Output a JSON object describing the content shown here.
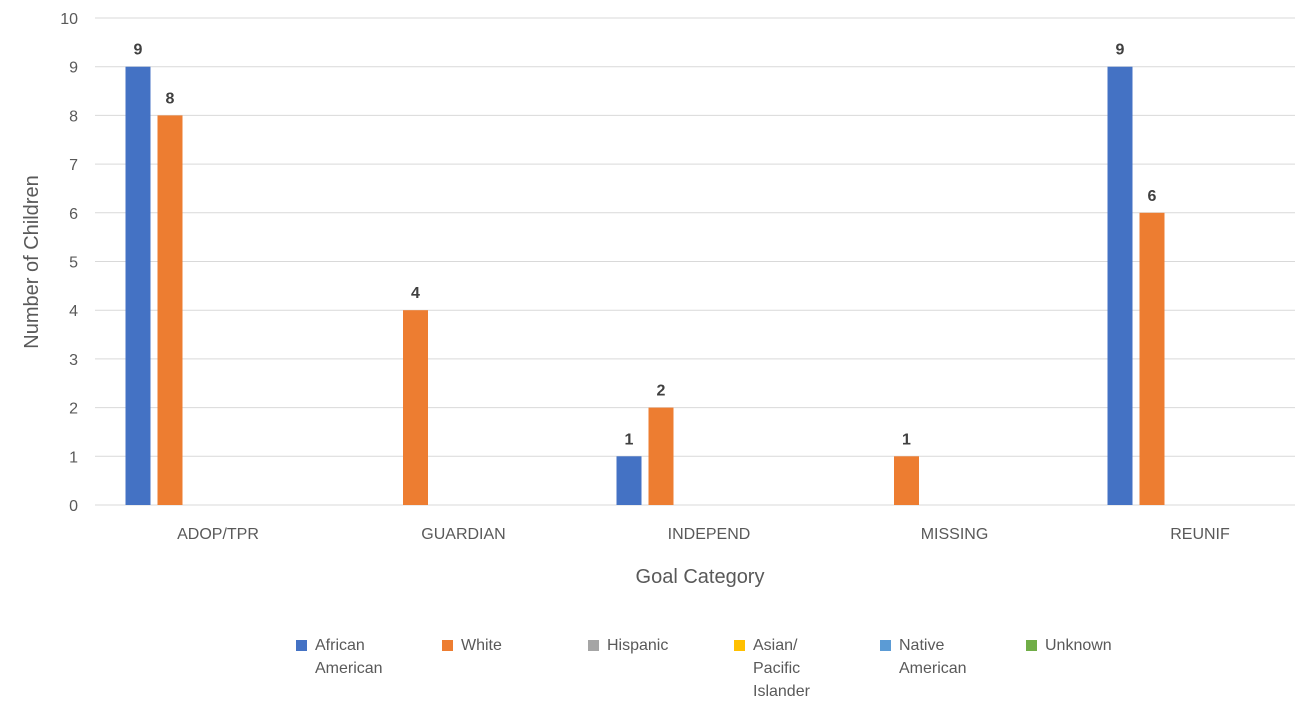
{
  "chart_data": {
    "type": "bar",
    "title": "",
    "xlabel": "Goal Category",
    "ylabel": "Number of Children",
    "ylim": [
      0,
      10
    ],
    "yticks": [
      0,
      1,
      2,
      3,
      4,
      5,
      6,
      7,
      8,
      9,
      10
    ],
    "grid": true,
    "legend_position": "bottom",
    "categories": [
      "ADOP/TPR",
      "GUARDIAN",
      "INDEPEND",
      "MISSING",
      "REUNIF"
    ],
    "series": [
      {
        "name": "African American",
        "color": "#4472C4",
        "values": [
          9,
          0,
          1,
          0,
          9
        ],
        "labels": [
          "9",
          "",
          "1",
          "",
          "9"
        ]
      },
      {
        "name": "White",
        "color": "#ED7D31",
        "values": [
          8,
          4,
          2,
          1,
          6
        ],
        "labels": [
          "8",
          "4",
          "2",
          "1",
          "6"
        ]
      },
      {
        "name": "Hispanic",
        "color": "#A5A5A5",
        "values": [
          0,
          0,
          0,
          0,
          0
        ],
        "labels": [
          "",
          "",
          "",
          "",
          ""
        ]
      },
      {
        "name": "Asian/ Pacific Islander",
        "color": "#FFC000",
        "values": [
          0,
          0,
          0,
          0,
          0
        ],
        "labels": [
          "",
          "",
          "",
          "",
          ""
        ]
      },
      {
        "name": "Native American",
        "color": "#5B9BD5",
        "values": [
          0,
          0,
          0,
          0,
          0
        ],
        "labels": [
          "",
          "",
          "",
          "",
          ""
        ]
      },
      {
        "name": "Unknown",
        "color": "#70AD47",
        "values": [
          0,
          0,
          0,
          0,
          0
        ],
        "labels": [
          "",
          "",
          "",
          "",
          ""
        ]
      }
    ],
    "legend_entries": [
      {
        "lines": [
          "African",
          "American"
        ]
      },
      {
        "lines": [
          "White"
        ]
      },
      {
        "lines": [
          "Hispanic"
        ]
      },
      {
        "lines": [
          "Asian/",
          "Pacific",
          "Islander"
        ]
      },
      {
        "lines": [
          "Native",
          "American"
        ]
      },
      {
        "lines": [
          "Unknown"
        ]
      }
    ]
  }
}
